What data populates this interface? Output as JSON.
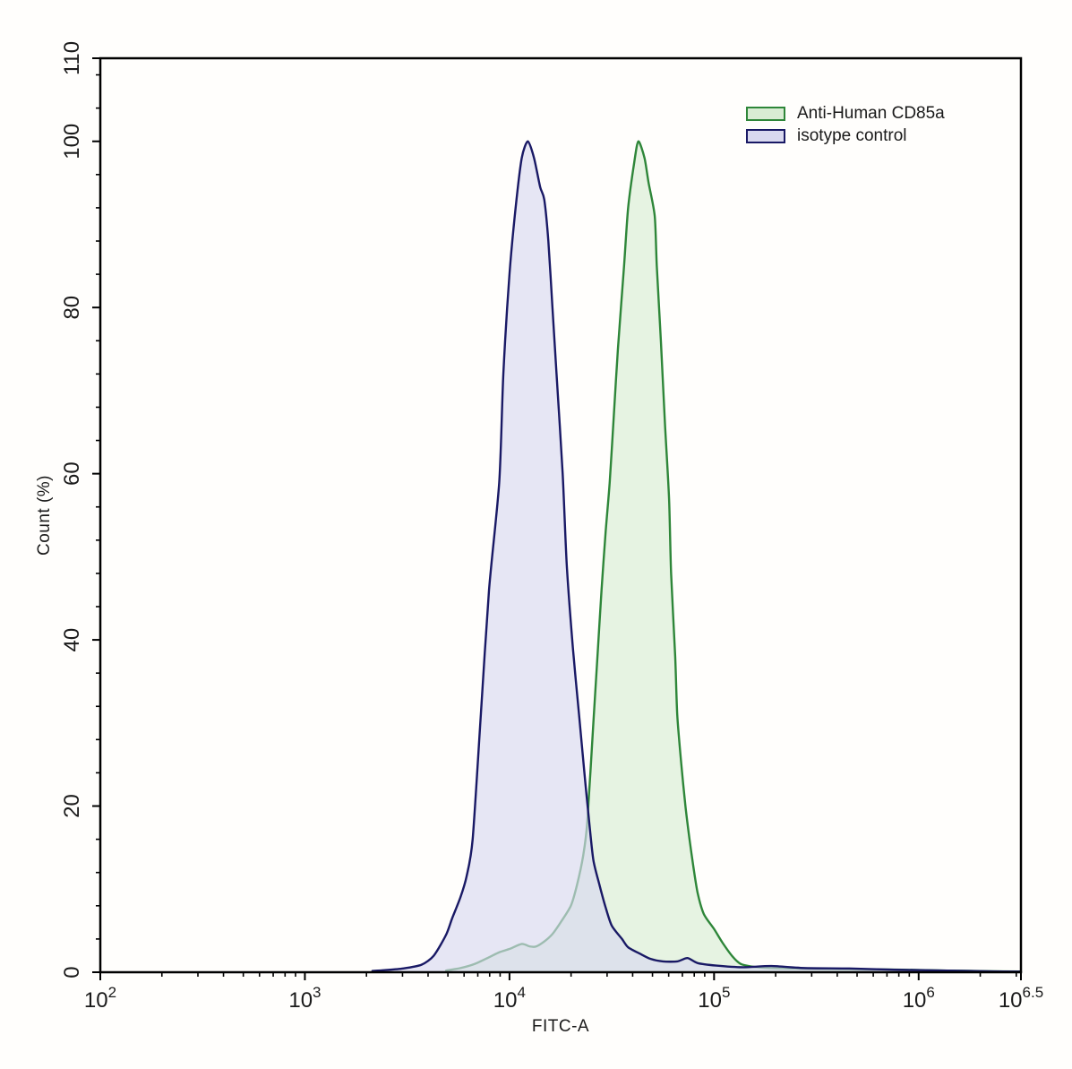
{
  "chart_data": {
    "type": "area",
    "subtype": "flow-cytometry-histogram-overlay",
    "title": "",
    "xlabel": "FITC-A",
    "ylabel": "Count  (%)",
    "x_scale": "log10",
    "x_range_log10": [
      2,
      6.5
    ],
    "ylim": [
      0,
      110
    ],
    "x_major_tick_exponents": [
      "2",
      "3",
      "4",
      "5",
      "6",
      "6.5"
    ],
    "x_tick_base": "10",
    "y_major_ticks": [
      "0",
      "20",
      "40",
      "60",
      "80",
      "100",
      "110"
    ],
    "y_minor_tick_step": 4,
    "grid": false,
    "legend_position": "top-right-inside",
    "axis_color": "#000000",
    "text_color": "#1a1a1a",
    "background_color": "#fffefc",
    "series": [
      {
        "name": "Anti-Human CD85a",
        "stroke": "#2e8639",
        "fill": "#d9ecd4",
        "fill_opacity": 0.65,
        "stroke_width": 2.4,
        "peak_log10_x": 4.63,
        "peak_percent": 100,
        "points_log10x_percent": [
          [
            3.69,
            0.2
          ],
          [
            3.76,
            0.5
          ],
          [
            3.83,
            1.0
          ],
          [
            3.9,
            1.8
          ],
          [
            3.95,
            2.4
          ],
          [
            4.0,
            2.8
          ],
          [
            4.06,
            3.4
          ],
          [
            4.1,
            3.1
          ],
          [
            4.13,
            3.1
          ],
          [
            4.17,
            3.7
          ],
          [
            4.21,
            4.6
          ],
          [
            4.25,
            6.0
          ],
          [
            4.3,
            8.0
          ],
          [
            4.33,
            10.5
          ],
          [
            4.36,
            14.0
          ],
          [
            4.38,
            18.0
          ],
          [
            4.41,
            30.0
          ],
          [
            4.43,
            38.0
          ],
          [
            4.45,
            46.0
          ],
          [
            4.47,
            53.0
          ],
          [
            4.49,
            59.0
          ],
          [
            4.51,
            67.0
          ],
          [
            4.53,
            75.0
          ],
          [
            4.56,
            85.0
          ],
          [
            4.58,
            92.0
          ],
          [
            4.61,
            97.5
          ],
          [
            4.63,
            100.0
          ],
          [
            4.66,
            98.0
          ],
          [
            4.68,
            95.0
          ],
          [
            4.71,
            91.0
          ],
          [
            4.72,
            85.0
          ],
          [
            4.74,
            76.0
          ],
          [
            4.76,
            66.0
          ],
          [
            4.78,
            57.0
          ],
          [
            4.79,
            48.0
          ],
          [
            4.81,
            38.0
          ],
          [
            4.82,
            31.0
          ],
          [
            4.84,
            25.0
          ],
          [
            4.86,
            20.0
          ],
          [
            4.88,
            16.0
          ],
          [
            4.9,
            12.5
          ],
          [
            4.92,
            9.5
          ],
          [
            4.95,
            7.0
          ],
          [
            5.0,
            5.2
          ],
          [
            5.04,
            3.6
          ],
          [
            5.09,
            1.9
          ],
          [
            5.13,
            1.0
          ],
          [
            5.18,
            0.7
          ],
          [
            5.27,
            0.5
          ],
          [
            5.4,
            0.45
          ],
          [
            5.57,
            0.4
          ],
          [
            5.75,
            0.35
          ],
          [
            5.92,
            0.3
          ],
          [
            6.14,
            0.2
          ],
          [
            6.36,
            0.12
          ],
          [
            6.5,
            0.08
          ]
        ]
      },
      {
        "name": "isotype control",
        "stroke": "#191965",
        "fill": "#d9d9ef",
        "fill_opacity": 0.65,
        "stroke_width": 2.4,
        "peak_log10_x": 4.09,
        "peak_percent": 100,
        "points_log10x_percent": [
          [
            3.33,
            0.15
          ],
          [
            3.39,
            0.25
          ],
          [
            3.48,
            0.45
          ],
          [
            3.57,
            0.9
          ],
          [
            3.63,
            2.0
          ],
          [
            3.69,
            4.5
          ],
          [
            3.72,
            6.5
          ],
          [
            3.76,
            9.0
          ],
          [
            3.79,
            11.5
          ],
          [
            3.82,
            16.0
          ],
          [
            3.86,
            31.0
          ],
          [
            3.9,
            46.0
          ],
          [
            3.95,
            59.0
          ],
          [
            3.97,
            72.0
          ],
          [
            4.0,
            84.0
          ],
          [
            4.03,
            92.0
          ],
          [
            4.06,
            98.0
          ],
          [
            4.09,
            100.0
          ],
          [
            4.12,
            98.0
          ],
          [
            4.15,
            94.5
          ],
          [
            4.17,
            93.0
          ],
          [
            4.19,
            88.0
          ],
          [
            4.21,
            80.0
          ],
          [
            4.23,
            72.0
          ],
          [
            4.26,
            60.0
          ],
          [
            4.28,
            49.0
          ],
          [
            4.31,
            39.0
          ],
          [
            4.34,
            31.0
          ],
          [
            4.37,
            23.0
          ],
          [
            4.39,
            18.0
          ],
          [
            4.41,
            13.5
          ],
          [
            4.44,
            10.5
          ],
          [
            4.47,
            7.8
          ],
          [
            4.5,
            5.6
          ],
          [
            4.55,
            4.0
          ],
          [
            4.58,
            3.0
          ],
          [
            4.64,
            2.2
          ],
          [
            4.69,
            1.6
          ],
          [
            4.75,
            1.3
          ],
          [
            4.82,
            1.3
          ],
          [
            4.87,
            1.7
          ],
          [
            4.92,
            1.1
          ],
          [
            5.01,
            0.8
          ],
          [
            5.14,
            0.6
          ],
          [
            5.28,
            0.75
          ],
          [
            5.44,
            0.5
          ],
          [
            5.66,
            0.45
          ],
          [
            5.88,
            0.3
          ],
          [
            6.14,
            0.2
          ],
          [
            6.36,
            0.1
          ],
          [
            6.5,
            0.07
          ]
        ]
      }
    ]
  }
}
